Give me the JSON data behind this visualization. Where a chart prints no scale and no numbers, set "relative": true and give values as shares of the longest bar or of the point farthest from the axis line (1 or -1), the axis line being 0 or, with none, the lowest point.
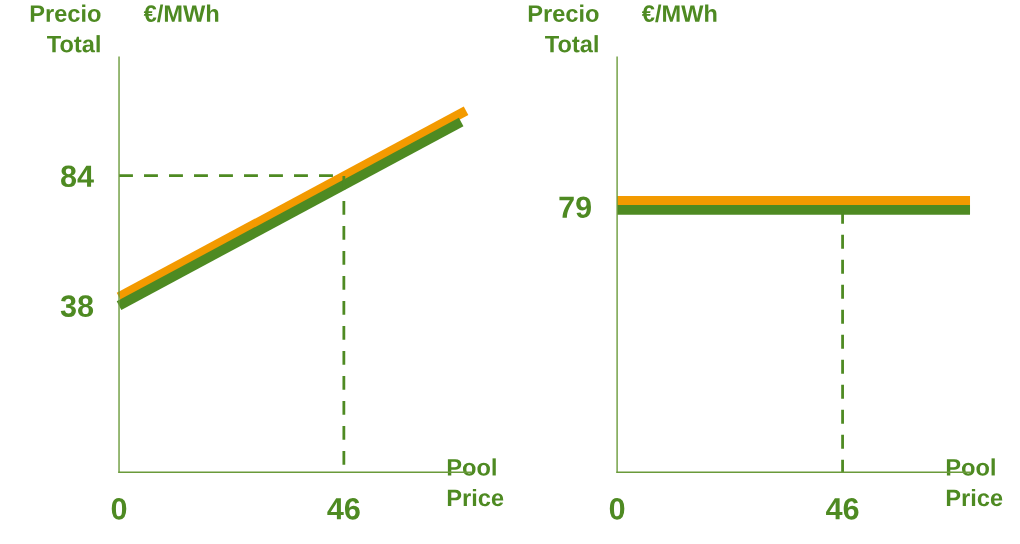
{
  "chart_data": [
    {
      "type": "line",
      "ylabel": "Precio Total",
      "xlabel": "Pool Price",
      "annotations": [
        "€/MWh"
      ],
      "xlim": [
        0,
        72
      ],
      "xticks": [
        0,
        46
      ],
      "ylim": [
        -21,
        126
      ],
      "yticks": [
        38,
        84
      ],
      "series": [
        {
          "color": "#f39a00",
          "x": [
            0,
            71
          ],
          "values": [
            41,
            107
          ]
        },
        {
          "color": "#4e8a22",
          "x": [
            0,
            70
          ],
          "values": [
            38,
            103
          ]
        },
        {
          "color": "#4e8a22",
          "line_style": "dashed",
          "x": [
            0,
            46,
            46
          ],
          "values": [
            84,
            84,
            -21
          ]
        }
      ]
    },
    {
      "type": "line",
      "ylabel": "Precio Total",
      "xlabel": "Pool Price",
      "relative": true,
      "annotations": [
        "€/MWh",
        {
          "text": "79",
          "x": 0,
          "y": 0.967
        }
      ],
      "xlim": [
        0,
        72
      ],
      "xticks": [
        0,
        46
      ],
      "series": [
        {
          "color": "#f39a00",
          "x": [
            0,
            72
          ],
          "values": [
            1,
            1
          ]
        },
        {
          "color": "#4e8a22",
          "x": [
            0,
            72
          ],
          "values": [
            0.967,
            0.967
          ]
        },
        {
          "color": "#4e8a22",
          "line_style": "dashed",
          "x": [
            46,
            46
          ],
          "values": [
            0.967,
            0
          ]
        }
      ]
    }
  ]
}
